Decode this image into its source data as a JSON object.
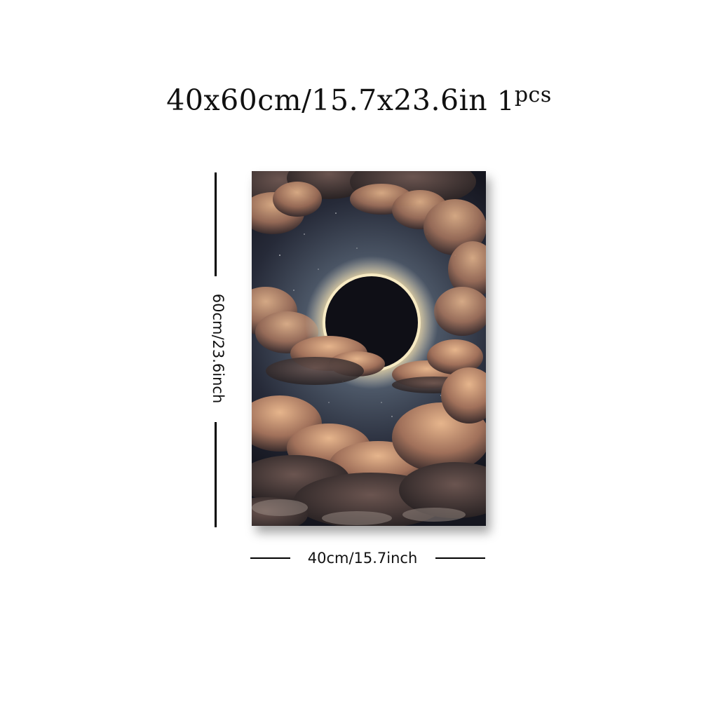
{
  "title": {
    "size_text": "40x60cm/15.7x23.6in",
    "quantity_number": "1",
    "quantity_unit": "pcs"
  },
  "dimensions": {
    "height_label": "60cm/23.6inch",
    "width_label": "40cm/15.7inch"
  },
  "artwork": {
    "subject": "solar eclipse among glowing clouds",
    "colors": {
      "sky_dark": "#1b1d2a",
      "sky_mid": "#5a6577",
      "cloud_light": "#d2a07a",
      "cloud_dark": "#2a2222",
      "corona": "#f3e3b6"
    }
  }
}
